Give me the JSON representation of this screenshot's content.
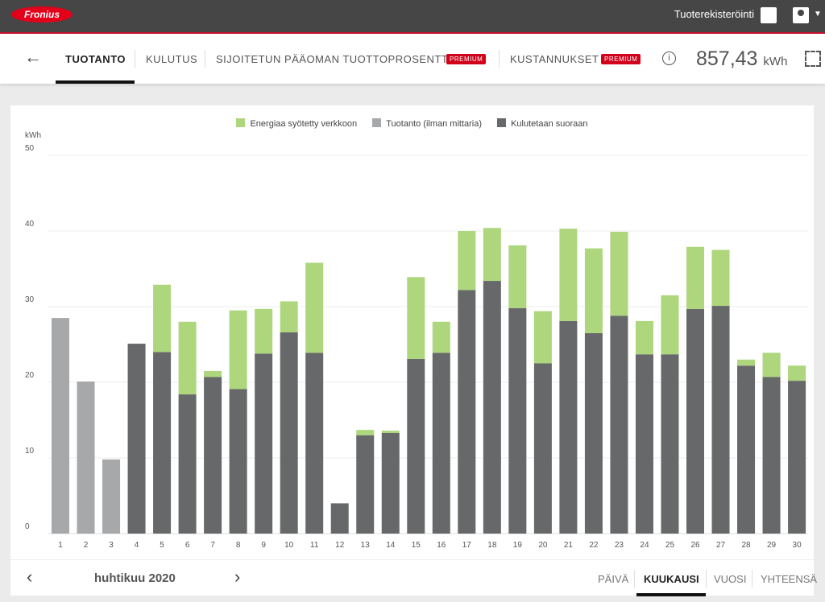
{
  "header": {
    "logo": "Fronius",
    "product_registration": "Tuoterekisteröinti"
  },
  "nav": {
    "back": "←",
    "tabs": [
      {
        "label": "TUOTANTO",
        "active": true
      },
      {
        "label": "KULUTUS"
      },
      {
        "label": "SIJOITETUN PÄÄOMAN TUOTTOPROSENTTI",
        "badge": "PREMIUM"
      },
      {
        "label": "KUSTANNUKSET",
        "badge": "PREMIUM"
      }
    ],
    "info": "i",
    "total_value": "857,43",
    "total_unit": "kWh"
  },
  "legend": [
    {
      "label": "Energiaa syötetty verkkoon",
      "color": "#add67d"
    },
    {
      "label": "Tuotanto (ilman mittaria)",
      "color": "#a7a8a9"
    },
    {
      "label": "Kulutetaan suoraan",
      "color": "#676869"
    }
  ],
  "chart_data": {
    "type": "bar",
    "stacked": true,
    "ylabel": "kWh",
    "ylim": [
      0,
      50
    ],
    "yticks": [
      0,
      10,
      20,
      30,
      40,
      50
    ],
    "grid": true,
    "legend_position": "top",
    "categories": [
      "1",
      "2",
      "3",
      "4",
      "5",
      "6",
      "7",
      "8",
      "9",
      "10",
      "11",
      "12",
      "13",
      "14",
      "15",
      "16",
      "17",
      "18",
      "19",
      "20",
      "21",
      "22",
      "23",
      "24",
      "25",
      "26",
      "27",
      "28",
      "29",
      "30"
    ],
    "series": [
      {
        "name": "Tuotanto (ilman mittaria)",
        "color": "#a7a8a9",
        "values": [
          28.5,
          20.1,
          9.8,
          0,
          0,
          0,
          0,
          0,
          0,
          0,
          0,
          0,
          0,
          0,
          0,
          0,
          0,
          0,
          0,
          0,
          0,
          0,
          0,
          0,
          0,
          0,
          0,
          0,
          0,
          0
        ]
      },
      {
        "name": "Kulutetaan suoraan",
        "color": "#676869",
        "values": [
          0,
          0,
          0,
          25.1,
          24.0,
          18.4,
          20.7,
          19.1,
          23.8,
          26.6,
          23.9,
          4.0,
          13.0,
          13.3,
          23.1,
          23.9,
          32.2,
          33.4,
          29.8,
          22.5,
          28.1,
          26.5,
          28.8,
          23.7,
          23.7,
          29.7,
          30.1,
          22.2,
          20.7,
          20.2
        ]
      },
      {
        "name": "Energiaa syötetty verkkoon",
        "color": "#add67d",
        "values": [
          0,
          0,
          0,
          0,
          8.9,
          9.6,
          0.8,
          10.4,
          5.9,
          4.1,
          11.9,
          0,
          0.7,
          0.3,
          10.8,
          4.1,
          7.8,
          7.0,
          8.3,
          6.9,
          12.2,
          11.2,
          11.1,
          4.4,
          7.8,
          8.2,
          7.4,
          0.8,
          3.2,
          2.0
        ]
      }
    ]
  },
  "period": {
    "prev": "‹",
    "label": "huhtikuu 2020",
    "next": "›",
    "tabs": [
      {
        "label": "PÄIVÄ"
      },
      {
        "label": "KUUKAUSI",
        "active": true
      },
      {
        "label": "VUOSI"
      },
      {
        "label": "YHTEENSÄ"
      }
    ]
  }
}
